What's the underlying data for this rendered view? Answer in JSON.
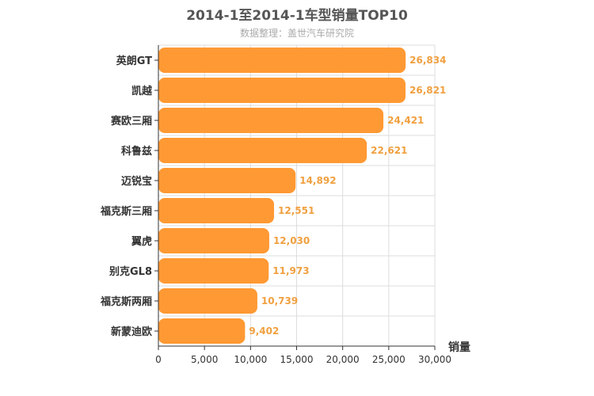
{
  "chart_data": {
    "type": "bar",
    "orientation": "horizontal",
    "title": "2014-1至2014-1车型销量TOP10",
    "subtitle": "数据整理：盖世汽车研究院",
    "xlabel": "销量",
    "xlim": [
      0,
      30000
    ],
    "x_ticks": [
      "0",
      "5,000",
      "10,000",
      "15,000",
      "20,000",
      "25,000",
      "30,000"
    ],
    "grid": true,
    "categories": [
      "英朗GT",
      "凯越",
      "赛欧三厢",
      "科鲁兹",
      "迈锐宝",
      "福克斯三厢",
      "翼虎",
      "别克GL8",
      "福克斯两厢",
      "新蒙迪欧"
    ],
    "values": [
      26834,
      26821,
      24421,
      22621,
      14892,
      12551,
      12030,
      11973,
      10739,
      9402
    ],
    "value_labels": [
      "26,834",
      "26,821",
      "24,421",
      "22,621",
      "14,892",
      "12,551",
      "12,030",
      "11,973",
      "10,739",
      "9,402"
    ],
    "colors": {
      "bar": "#ff9933",
      "value_label": "#f0a040",
      "grid": "#dddddd",
      "axis": "#333333"
    }
  }
}
